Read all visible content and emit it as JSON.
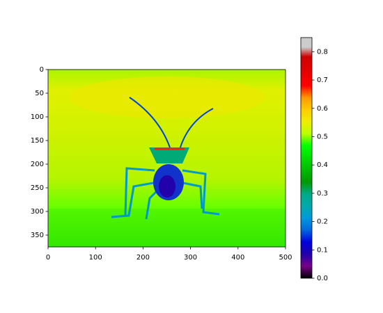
{
  "chart_data": {
    "type": "image",
    "xlim": [
      0,
      500
    ],
    "ylim": [
      375,
      0
    ],
    "xticks": [
      0,
      100,
      200,
      300,
      400,
      500
    ],
    "yticks": [
      0,
      50,
      100,
      150,
      200,
      250,
      300,
      350
    ],
    "colorbar": {
      "colormap": "nipy_spectral",
      "lim": [
        0,
        0.85
      ],
      "ticks": [
        {
          "value": 0,
          "label": "0.0"
        },
        {
          "value": 0.1,
          "label": "0.1"
        },
        {
          "value": 0.2,
          "label": "0.2"
        },
        {
          "value": 0.3,
          "label": "0.3"
        },
        {
          "value": 0.4,
          "label": "0.4"
        },
        {
          "value": 0.5,
          "label": "0.5"
        },
        {
          "value": 0.6,
          "label": "0.6"
        },
        {
          "value": 0.7,
          "label": "0.7"
        },
        {
          "value": 0.8,
          "label": "0.8"
        }
      ]
    }
  }
}
